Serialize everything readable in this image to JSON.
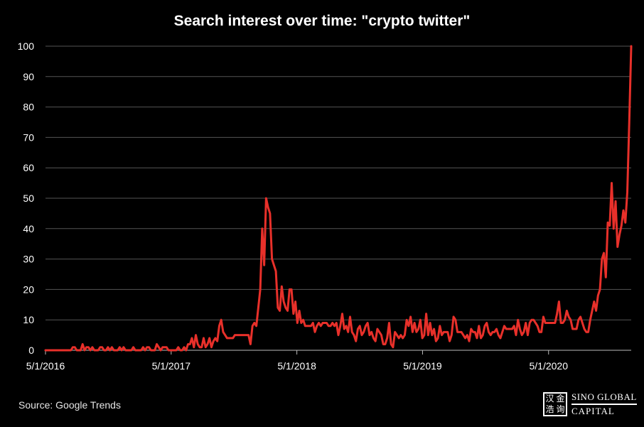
{
  "chart_data": {
    "type": "line",
    "title": "Search interest over time: \"crypto twitter\"",
    "xlabel": "",
    "ylabel": "",
    "ylim": [
      0,
      100
    ],
    "yticks": [
      0,
      10,
      20,
      30,
      40,
      50,
      60,
      70,
      80,
      90,
      100
    ],
    "xticks": [
      "5/1/2016",
      "5/1/2017",
      "5/1/2018",
      "5/1/2019",
      "5/1/2020"
    ],
    "x_start": "5/1/2016",
    "x_end": "12/27/2020",
    "x_interval": "weekly",
    "grid": true,
    "legend": "none",
    "line_color": "#e8302a",
    "series": [
      {
        "name": "",
        "values": [
          0,
          0,
          0,
          0,
          0,
          0,
          0,
          0,
          0,
          0,
          0,
          0,
          0,
          0,
          1,
          1,
          0,
          0,
          0,
          2,
          0,
          1,
          1,
          0,
          1,
          0,
          0,
          0,
          1,
          1,
          0,
          0,
          1,
          0,
          1,
          0,
          0,
          0,
          1,
          0,
          1,
          0,
          0,
          0,
          0,
          1,
          0,
          0,
          0,
          0,
          1,
          0,
          1,
          1,
          0,
          0,
          0,
          2,
          1,
          0,
          1,
          1,
          1,
          0,
          0,
          0,
          0,
          0,
          1,
          0,
          0,
          1,
          0,
          2,
          2,
          4,
          1,
          5,
          2,
          1,
          1,
          4,
          1,
          2,
          4,
          1,
          3,
          4,
          3,
          8,
          10,
          6,
          5,
          4,
          4,
          4,
          4,
          5,
          5,
          5,
          5,
          5,
          5,
          5,
          5,
          2,
          8,
          9,
          8,
          14,
          20,
          40,
          28,
          50,
          47,
          45,
          30,
          28,
          26,
          14,
          13,
          21,
          16,
          14,
          13,
          20,
          20,
          12,
          16,
          9,
          13,
          9,
          10,
          8,
          8,
          8,
          8,
          9,
          6,
          8,
          9,
          8,
          9,
          9,
          9,
          8,
          8,
          9,
          8,
          9,
          5,
          8,
          12,
          7,
          8,
          6,
          11,
          6,
          5,
          3,
          7,
          8,
          5,
          6,
          8,
          9,
          5,
          6,
          4,
          3,
          7,
          6,
          5,
          2,
          2,
          4,
          9,
          2,
          1,
          6,
          5,
          4,
          5,
          4,
          5,
          10,
          8,
          11,
          6,
          9,
          6,
          7,
          10,
          4,
          5,
          12,
          5,
          9,
          5,
          7,
          3,
          4,
          8,
          5,
          6,
          6,
          6,
          3,
          5,
          11,
          10,
          6,
          6,
          6,
          5,
          4,
          5,
          3,
          7,
          6,
          6,
          4,
          8,
          4,
          5,
          8,
          9,
          6,
          5,
          6,
          6,
          7,
          5,
          4,
          6,
          8,
          7,
          7,
          7,
          7,
          8,
          5,
          10,
          7,
          5,
          6,
          9,
          5,
          9,
          10,
          10,
          9,
          8,
          6,
          6,
          11,
          9,
          9,
          9,
          9,
          9,
          9,
          12,
          16,
          9,
          9,
          10,
          13,
          11,
          10,
          7,
          7,
          7,
          10,
          11,
          9,
          7,
          6,
          6,
          10,
          13,
          16,
          13,
          18,
          20,
          30,
          32,
          24,
          42,
          41,
          55,
          40,
          49,
          34,
          38,
          41,
          46,
          42,
          52,
          75,
          100
        ]
      }
    ]
  },
  "footer": {
    "source": "Source: Google Trends",
    "logo_text_top": "SINO GLOBAL",
    "logo_text_bottom": "CAPITAL",
    "logo_seal_chars": [
      "汉",
      "金",
      "浩",
      "询"
    ]
  }
}
